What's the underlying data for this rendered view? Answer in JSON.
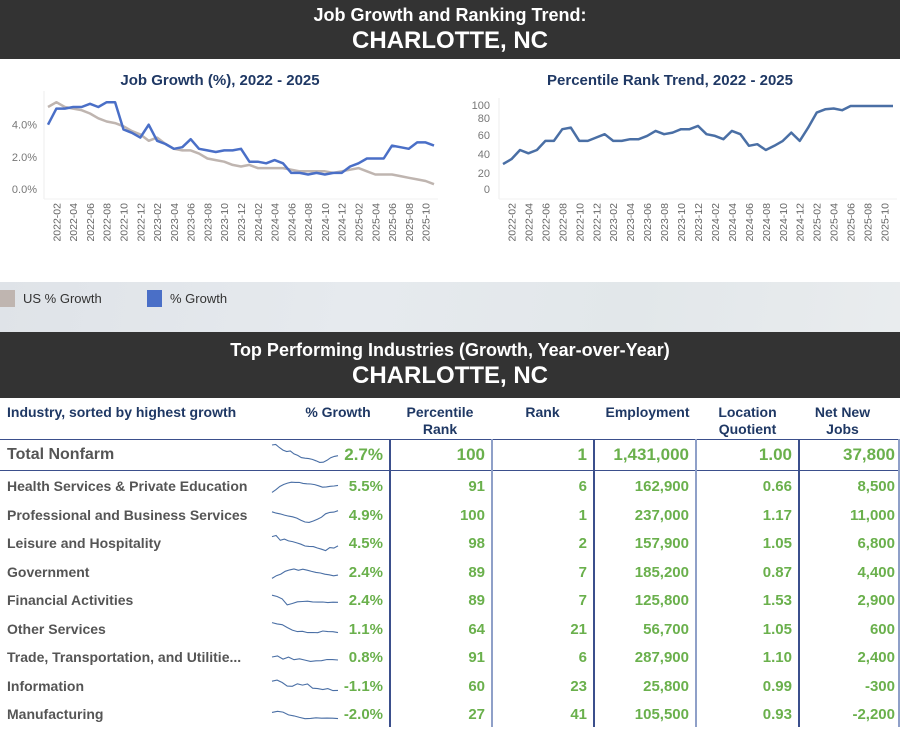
{
  "header": {
    "title": "Job Growth and Ranking Trend:",
    "location": "CHARLOTTE, NC"
  },
  "section2": {
    "title": "Top Performing Industries (Growth, Year-over-Year)",
    "location": "CHARLOTTE, NC"
  },
  "legend": [
    {
      "label": "US % Growth",
      "color": "#bfb5b0"
    },
    {
      "label": "% Growth",
      "color": "#4a6fc7"
    }
  ],
  "colors": {
    "growth": "#4a6fc7",
    "us_growth": "#bfb5b0",
    "rank": "#4a6fa5",
    "value_green": "#6ab04c",
    "header_blue": "#1f3864",
    "banner": "#333333"
  },
  "chart_data": [
    {
      "type": "line",
      "title": "Job Growth (%), 2022 - 2025",
      "xlabel": "",
      "ylabel": "",
      "ylim": [
        0,
        5.6
      ],
      "yticks": [
        "0.0%",
        "2.0%",
        "4.0%"
      ],
      "x_tick_labels": [
        "2022-02",
        "2022-04",
        "2022-06",
        "2022-08",
        "2022-10",
        "2022-12",
        "2023-02",
        "2023-04",
        "2023-06",
        "2023-08",
        "2023-10",
        "2023-12",
        "2024-02",
        "2024-04",
        "2024-06",
        "2024-08",
        "2024-10",
        "2024-12",
        "2025-02",
        "2025-04",
        "2025-06",
        "2025-08",
        "2025-10"
      ],
      "x": [
        "2022-01",
        "2022-02",
        "2022-03",
        "2022-04",
        "2022-05",
        "2022-06",
        "2022-07",
        "2022-08",
        "2022-09",
        "2022-10",
        "2022-11",
        "2022-12",
        "2023-01",
        "2023-02",
        "2023-03",
        "2023-04",
        "2023-05",
        "2023-06",
        "2023-07",
        "2023-08",
        "2023-09",
        "2023-10",
        "2023-11",
        "2023-12",
        "2024-01",
        "2024-02",
        "2024-03",
        "2024-04",
        "2024-05",
        "2024-06",
        "2024-07",
        "2024-08",
        "2024-09",
        "2024-10",
        "2024-11",
        "2024-12",
        "2025-01",
        "2025-02",
        "2025-03",
        "2025-04",
        "2025-05",
        "2025-06",
        "2025-07",
        "2025-08",
        "2025-09",
        "2025-10",
        "2025-11"
      ],
      "series": [
        {
          "name": "% Growth",
          "values": [
            4.0,
            5.0,
            5.0,
            5.1,
            5.1,
            5.3,
            5.1,
            5.4,
            5.4,
            3.7,
            3.5,
            3.2,
            4.0,
            3.0,
            2.8,
            2.5,
            2.6,
            3.1,
            2.5,
            2.4,
            2.3,
            2.4,
            2.4,
            2.5,
            1.7,
            1.7,
            1.6,
            1.8,
            1.6,
            1.0,
            1.0,
            0.9,
            1.0,
            0.9,
            1.0,
            1.0,
            1.4,
            1.6,
            1.9,
            1.9,
            1.9,
            2.7,
            2.6,
            2.5,
            2.9,
            2.9,
            2.7
          ]
        },
        {
          "name": "US % Growth",
          "values": [
            5.1,
            5.4,
            5.1,
            5.0,
            4.9,
            4.7,
            4.4,
            4.2,
            4.1,
            3.9,
            3.6,
            3.4,
            3.0,
            3.2,
            2.8,
            2.5,
            2.4,
            2.4,
            2.2,
            1.9,
            1.8,
            1.7,
            1.5,
            1.4,
            1.5,
            1.3,
            1.3,
            1.3,
            1.3,
            1.2,
            1.1,
            1.1,
            1.1,
            1.1,
            1.0,
            1.1,
            1.2,
            1.3,
            1.1,
            0.9,
            0.9,
            0.9,
            0.8,
            0.7,
            0.6,
            0.5,
            0.3
          ]
        }
      ]
    },
    {
      "type": "line",
      "title": "Percentile Rank Trend, 2022 - 2025",
      "xlabel": "",
      "ylabel": "",
      "ylim": [
        0,
        100
      ],
      "yticks": [
        "0",
        "20",
        "40",
        "60",
        "80",
        "100"
      ],
      "x_tick_labels": [
        "2022-02",
        "2022-04",
        "2022-06",
        "2022-08",
        "2022-10",
        "2022-12",
        "2023-02",
        "2023-04",
        "2023-06",
        "2023-08",
        "2023-10",
        "2023-12",
        "2024-02",
        "2024-04",
        "2024-06",
        "2024-08",
        "2024-10",
        "2024-12",
        "2025-02",
        "2025-04",
        "2025-06",
        "2025-08",
        "2025-10"
      ],
      "series": [
        {
          "name": "Percentile Rank",
          "values": [
            30,
            36,
            47,
            43,
            47,
            58,
            58,
            72,
            74,
            58,
            58,
            62,
            66,
            58,
            58,
            60,
            60,
            64,
            70,
            66,
            68,
            72,
            72,
            76,
            66,
            64,
            60,
            70,
            66,
            52,
            54,
            47,
            52,
            58,
            68,
            58,
            74,
            92,
            96,
            97,
            95,
            100,
            100,
            100,
            100,
            100,
            100
          ]
        }
      ]
    }
  ],
  "table": {
    "headers": {
      "industry": "Industry, sorted by highest growth",
      "growth": "% Growth",
      "pct_rank_1": "Percentile",
      "pct_rank_2": "Rank",
      "rank": "Rank",
      "employment": "Employment",
      "lq_1": "Location",
      "lq_2": "Quotient",
      "nnj_1": "Net New",
      "nnj_2": "Jobs"
    },
    "total": {
      "industry": "Total Nonfarm",
      "growth": "2.7%",
      "pct_rank": "100",
      "rank": "1",
      "employment": "1,431,000",
      "lq": "1.00",
      "net_new": "37,800"
    },
    "rows": [
      {
        "industry": "Health Services & Private Education",
        "growth": "5.5%",
        "pct_rank": "91",
        "rank": "6",
        "employment": "162,900",
        "lq": "0.66",
        "net_new": "8,500"
      },
      {
        "industry": "Professional and Business Services",
        "growth": "4.9%",
        "pct_rank": "100",
        "rank": "1",
        "employment": "237,000",
        "lq": "1.17",
        "net_new": "11,000"
      },
      {
        "industry": "Leisure and Hospitality",
        "growth": "4.5%",
        "pct_rank": "98",
        "rank": "2",
        "employment": "157,900",
        "lq": "1.05",
        "net_new": "6,800"
      },
      {
        "industry": "Government",
        "growth": "2.4%",
        "pct_rank": "89",
        "rank": "7",
        "employment": "185,200",
        "lq": "0.87",
        "net_new": "4,400"
      },
      {
        "industry": "Financial Activities",
        "growth": "2.4%",
        "pct_rank": "89",
        "rank": "7",
        "employment": "125,800",
        "lq": "1.53",
        "net_new": "2,900"
      },
      {
        "industry": "Other Services",
        "growth": "1.1%",
        "pct_rank": "64",
        "rank": "21",
        "employment": "56,700",
        "lq": "1.05",
        "net_new": "600"
      },
      {
        "industry": "Trade, Transportation, and Utilitie...",
        "growth": "0.8%",
        "pct_rank": "91",
        "rank": "6",
        "employment": "287,900",
        "lq": "1.10",
        "net_new": "2,400"
      },
      {
        "industry": "Information",
        "growth": "-1.1%",
        "pct_rank": "60",
        "rank": "23",
        "employment": "25,800",
        "lq": "0.99",
        "net_new": "-300"
      },
      {
        "industry": "Manufacturing",
        "growth": "-2.0%",
        "pct_rank": "27",
        "rank": "41",
        "employment": "105,500",
        "lq": "0.93",
        "net_new": "-2,200"
      }
    ]
  }
}
